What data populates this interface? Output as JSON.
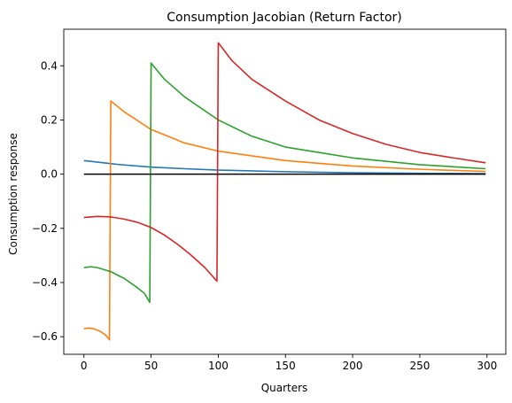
{
  "chart_data": {
    "type": "line",
    "title": "Consumption Jacobian (Return Factor)",
    "xlabel": "Quarters",
    "ylabel": "Consumption response",
    "xlim": [
      -15,
      314
    ],
    "ylim": [
      -0.665,
      0.535
    ],
    "xticks": [
      0,
      50,
      100,
      150,
      200,
      250,
      300
    ],
    "yticks": [
      -0.6,
      -0.4,
      -0.2,
      0.0,
      0.2,
      0.4
    ],
    "ytick_labels": [
      "−0.6",
      "−0.4",
      "−0.2",
      "0.0",
      "0.2",
      "0.4"
    ],
    "grid": false,
    "legend": "none",
    "series": [
      {
        "color": "#1f77b4",
        "points": [
          [
            0,
            0.05
          ],
          [
            25,
            0.036
          ],
          [
            50,
            0.026
          ],
          [
            75,
            0.02
          ],
          [
            100,
            0.015
          ],
          [
            150,
            0.009
          ],
          [
            200,
            0.005
          ],
          [
            250,
            0.003
          ],
          [
            299,
            0.002
          ]
        ]
      },
      {
        "color": "#ff7f0e",
        "points": [
          [
            0,
            -0.57
          ],
          [
            4,
            -0.568
          ],
          [
            8,
            -0.572
          ],
          [
            12,
            -0.58
          ],
          [
            16,
            -0.593
          ],
          [
            19,
            -0.612
          ],
          [
            20,
            0.27
          ],
          [
            30,
            0.23
          ],
          [
            50,
            0.165
          ],
          [
            75,
            0.115
          ],
          [
            100,
            0.085
          ],
          [
            150,
            0.05
          ],
          [
            200,
            0.03
          ],
          [
            250,
            0.018
          ],
          [
            299,
            0.01
          ]
        ]
      },
      {
        "color": "#2ca02c",
        "points": [
          [
            0,
            -0.345
          ],
          [
            5,
            -0.342
          ],
          [
            10,
            -0.345
          ],
          [
            20,
            -0.36
          ],
          [
            30,
            -0.385
          ],
          [
            40,
            -0.42
          ],
          [
            45,
            -0.44
          ],
          [
            49,
            -0.473
          ],
          [
            50,
            0.41
          ],
          [
            60,
            0.35
          ],
          [
            75,
            0.285
          ],
          [
            100,
            0.2
          ],
          [
            125,
            0.14
          ],
          [
            150,
            0.1
          ],
          [
            200,
            0.06
          ],
          [
            250,
            0.035
          ],
          [
            299,
            0.02
          ]
        ]
      },
      {
        "color": "#d62728",
        "points": [
          [
            0,
            -0.16
          ],
          [
            10,
            -0.156
          ],
          [
            20,
            -0.158
          ],
          [
            30,
            -0.166
          ],
          [
            40,
            -0.178
          ],
          [
            50,
            -0.197
          ],
          [
            60,
            -0.225
          ],
          [
            70,
            -0.26
          ],
          [
            80,
            -0.3
          ],
          [
            90,
            -0.345
          ],
          [
            99,
            -0.395
          ],
          [
            100,
            0.485
          ],
          [
            110,
            0.42
          ],
          [
            125,
            0.35
          ],
          [
            150,
            0.27
          ],
          [
            175,
            0.2
          ],
          [
            200,
            0.15
          ],
          [
            225,
            0.11
          ],
          [
            250,
            0.08
          ],
          [
            275,
            0.06
          ],
          [
            299,
            0.042
          ]
        ]
      },
      {
        "color": "#000000",
        "points": [
          [
            0,
            0.0
          ],
          [
            299,
            0.0
          ]
        ]
      }
    ]
  }
}
